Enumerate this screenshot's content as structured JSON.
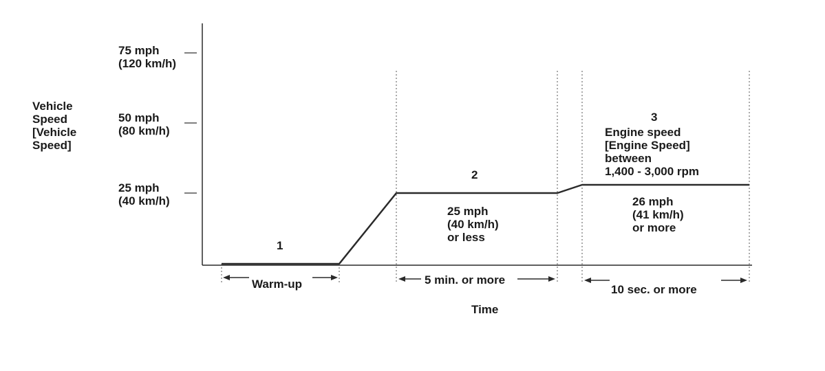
{
  "y_axis": {
    "label_lines": [
      "Vehicle",
      "Speed",
      "[Vehicle",
      "Speed]"
    ],
    "ticks": [
      {
        "line1": "75 mph",
        "line2": "(120 km/h)"
      },
      {
        "line1": "50 mph",
        "line2": "(80 km/h)"
      },
      {
        "line1": "25 mph",
        "line2": "(40 km/h)"
      }
    ]
  },
  "x_axis": {
    "label": "Time"
  },
  "phases": [
    {
      "number": "1",
      "duration_label": "Warm-up"
    },
    {
      "number": "2",
      "condition_lines": [
        "25 mph",
        "(40 km/h)",
        "or less"
      ],
      "duration_label": "5 min. or more"
    },
    {
      "number": "3",
      "header_lines": [
        "Engine speed",
        "[Engine Speed]",
        "between",
        "1,400 - 3,000 rpm"
      ],
      "condition_lines": [
        "26 mph",
        "(41 km/h)",
        "or more"
      ],
      "duration_label": "10 sec. or more"
    }
  ],
  "colors": {
    "line": "#2a2a2a",
    "text": "#1a1a1a",
    "dotted": "#555555"
  }
}
